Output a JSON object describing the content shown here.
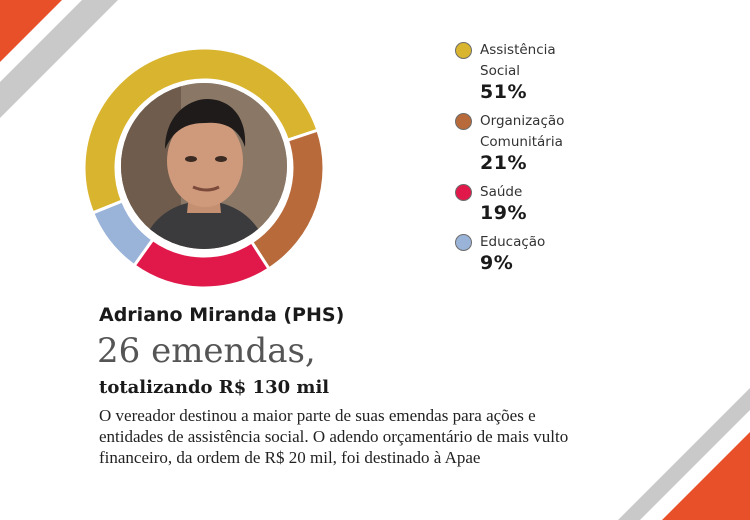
{
  "chart_data": {
    "type": "pie",
    "categories": [
      "Assistência Social",
      "Organização Comunitária",
      "Saúde",
      "Educação"
    ],
    "values": [
      51,
      21,
      19,
      9
    ],
    "value_labels": [
      "51%",
      "21%",
      "19%",
      "9%"
    ],
    "colors": [
      "#d9b52f",
      "#b86a3a",
      "#e0194a",
      "#9ab3d8"
    ],
    "legend_placement": "right",
    "style": "donut"
  },
  "photo": {
    "icon": "person-photo-icon"
  },
  "profile": {
    "name": "Adriano Miranda (PHS)",
    "amendments": "26 emendas,",
    "total": "totalizando R$ 130 mil",
    "description": "O vereador destinou a maior parte de suas emendas para ações e entidades de assistência social. O adendo orçamentário de mais vulto financeiro, da ordem de R$ 20 mil, foi destinado à Apae"
  },
  "decor_colors": {
    "orange": "#e8502a",
    "gray": "#c8c8c8"
  }
}
